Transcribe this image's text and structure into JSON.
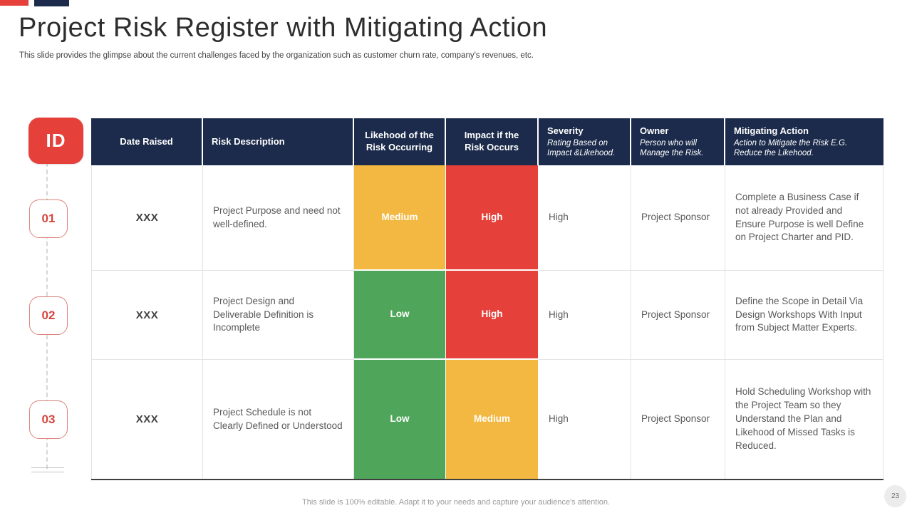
{
  "slide": {
    "title": "Project Risk Register with Mitigating Action",
    "subtitle": "This slide provides the glimpse about the current challenges faced by the organization such as customer churn rate, company's revenues, etc.",
    "footer": "This slide is 100% editable.  Adapt it to your needs and capture your audience's attention.",
    "page_number": "23"
  },
  "colors": {
    "navy": "#1c2b4b",
    "red": "#e6403a",
    "yellow": "#f2b841",
    "green": "#4fa65a"
  },
  "id_rail": {
    "header_label": "ID",
    "items": [
      "01",
      "02",
      "03"
    ]
  },
  "table": {
    "columns": [
      {
        "title": "Date Raised",
        "subtitle": ""
      },
      {
        "title": "Risk Description",
        "subtitle": ""
      },
      {
        "title": "Likehood of the Risk Occurring",
        "subtitle": ""
      },
      {
        "title": "Impact if the Risk Occurs",
        "subtitle": ""
      },
      {
        "title": "Severity",
        "subtitle": "Rating Based on Impact &Likehood."
      },
      {
        "title": "Owner",
        "subtitle": "Person who will Manage  the Risk."
      },
      {
        "title": "Mitigating Action",
        "subtitle": "Action to Mitigate the Risk E.G. Reduce  the Likehood."
      }
    ],
    "rows": [
      {
        "date_raised": "XXX",
        "risk_description": "Project Purpose and need not well-defined.",
        "likelihood": {
          "label": "Medium",
          "color": "#f2b841"
        },
        "impact": {
          "label": "High",
          "color": "#e6403a"
        },
        "severity": "High",
        "owner": "Project Sponsor",
        "mitigating_action": "Complete a Business Case if not already Provided and Ensure Purpose is well Define on Project Charter and PID."
      },
      {
        "date_raised": "XXX",
        "risk_description": "Project Design and Deliverable Definition is Incomplete",
        "likelihood": {
          "label": "Low",
          "color": "#4fa65a"
        },
        "impact": {
          "label": "High",
          "color": "#e6403a"
        },
        "severity": "High",
        "owner": "Project Sponsor",
        "mitigating_action": "Define the Scope in Detail Via Design Workshops With Input from Subject Matter Experts."
      },
      {
        "date_raised": "XXX",
        "risk_description": "Project Schedule is not Clearly Defined or Understood",
        "likelihood": {
          "label": "Low",
          "color": "#4fa65a"
        },
        "impact": {
          "label": "Medium",
          "color": "#f2b841"
        },
        "severity": "High",
        "owner": "Project Sponsor",
        "mitigating_action": "Hold Scheduling Workshop with the Project Team so they Understand the Plan and Likehood  of Missed Tasks is Reduced."
      }
    ]
  }
}
